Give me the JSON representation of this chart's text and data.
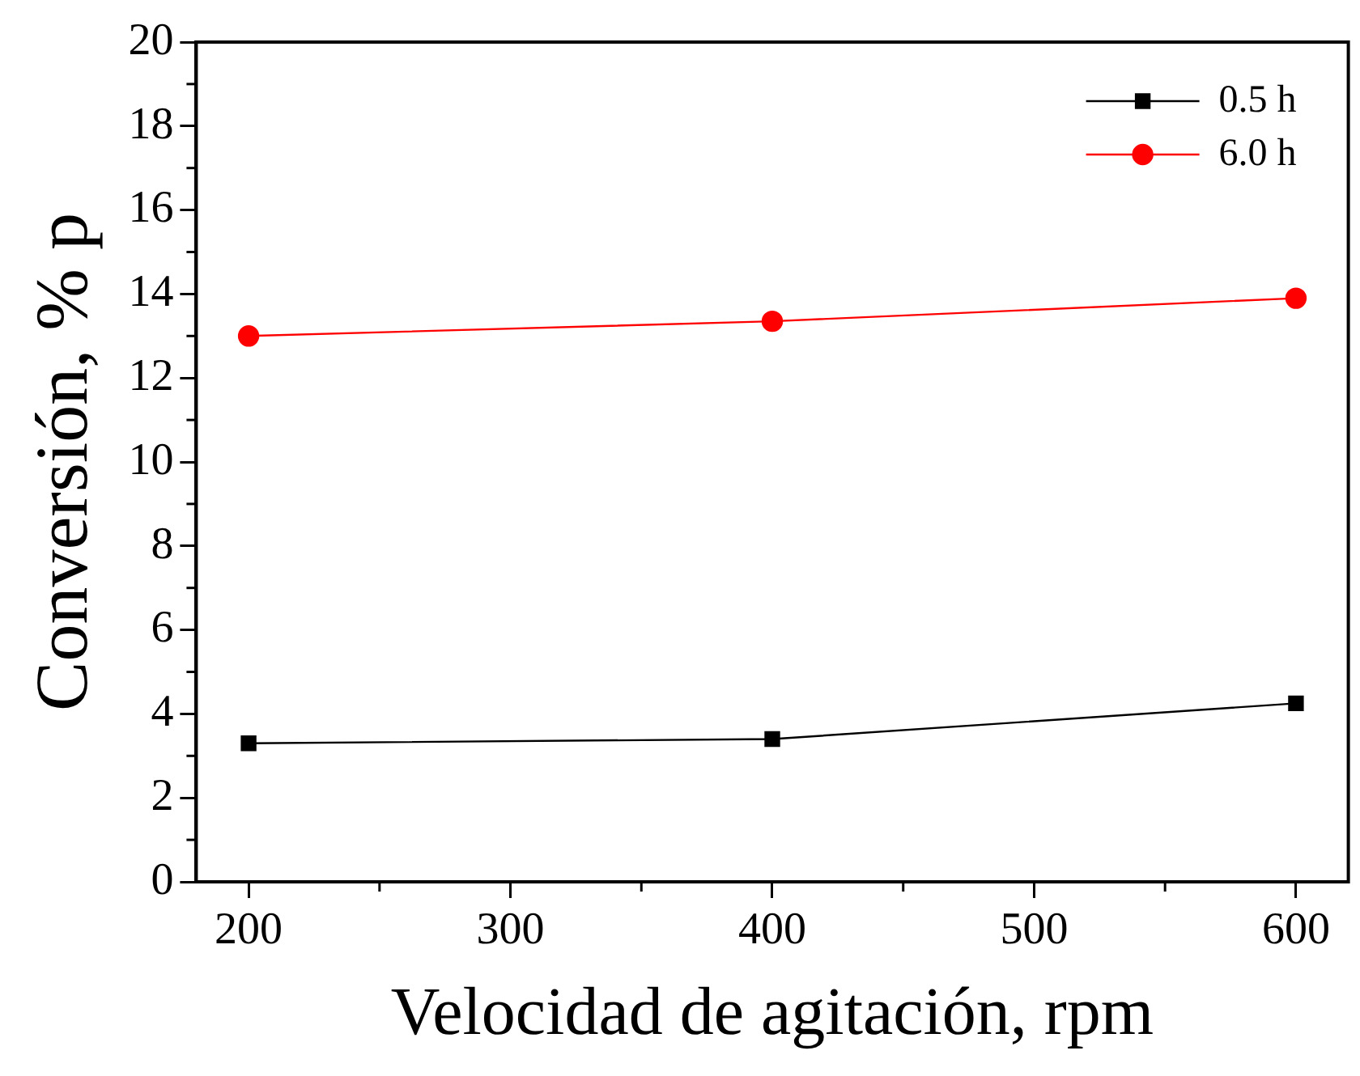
{
  "chart_data": {
    "type": "line",
    "xlabel": "Velocidad de agitación, rpm",
    "ylabel": "Conversión, % p",
    "x": [
      200,
      400,
      600
    ],
    "series": [
      {
        "name": "0.5 h",
        "color": "#000000",
        "marker": "square",
        "values": [
          3.3,
          3.4,
          4.25
        ]
      },
      {
        "name": "6.0 h",
        "color": "#ff0000",
        "marker": "circle",
        "values": [
          13.0,
          13.35,
          13.9
        ]
      }
    ],
    "xlim": [
      180,
      620
    ],
    "xticks": [
      200,
      300,
      400,
      500,
      600
    ],
    "ylim": [
      0,
      20
    ],
    "yticks": [
      0,
      2,
      4,
      6,
      8,
      10,
      12,
      14,
      16,
      18,
      20
    ],
    "grid": false,
    "legend": "top right",
    "line_style": "solid"
  }
}
